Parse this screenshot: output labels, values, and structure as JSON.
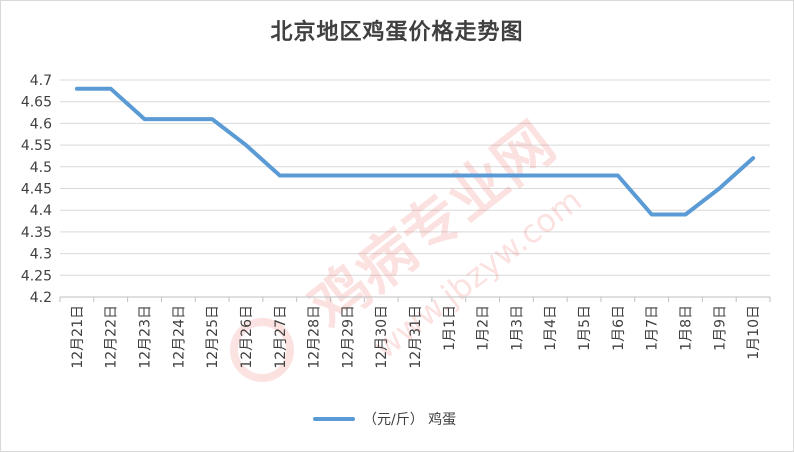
{
  "chart_data": {
    "type": "line",
    "title": "北京地区鸡蛋价格走势图",
    "xlabel": "",
    "ylabel": "",
    "categories": [
      "12月21日",
      "12月22日",
      "12月23日",
      "12月24日",
      "12月25日",
      "12月26日",
      "12月27日",
      "12月28日",
      "12月29日",
      "12月30日",
      "12月31日",
      "1月1日",
      "1月2日",
      "1月3日",
      "1月4日",
      "1月5日",
      "1月6日",
      "1月7日",
      "1月8日",
      "1月9日",
      "1月10日"
    ],
    "series": [
      {
        "name": "（元/斤） 鸡蛋",
        "values": [
          4.68,
          4.68,
          4.61,
          4.61,
          4.61,
          4.55,
          4.48,
          4.48,
          4.48,
          4.48,
          4.48,
          4.48,
          4.48,
          4.48,
          4.48,
          4.48,
          4.48,
          4.39,
          4.39,
          4.45,
          4.52
        ],
        "color": "#5b9bd5"
      }
    ],
    "ylim": [
      4.2,
      4.7
    ],
    "yticks": [
      "4.2",
      "4.25",
      "4.3",
      "4.35",
      "4.4",
      "4.45",
      "4.5",
      "4.55",
      "4.6",
      "4.65",
      "4.7"
    ],
    "grid": true,
    "legend_position": "bottom"
  },
  "watermark": {
    "cn": "鸡病专业网",
    "url": "www.jbzyw.com",
    "color": "#e8514a"
  }
}
